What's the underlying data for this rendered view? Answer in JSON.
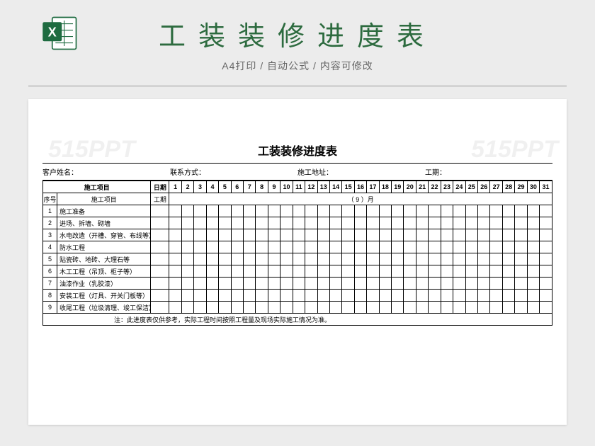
{
  "header": {
    "main_title": "工装装修进度表",
    "subtitle": "A4打印  /  自动公式  /  内容可修改"
  },
  "watermark": "515PPT",
  "sheet": {
    "title": "工装装修进度表",
    "info": {
      "customer_label": "客户姓名：",
      "contact_label": "联系方式：",
      "address_label": "施工地址：",
      "duration_label": "工期："
    },
    "table_headers": {
      "project_group": "施工项目",
      "date_label": "日期",
      "seq": "序号",
      "item": "施工项目",
      "duration": "工期",
      "month_text": "（   9   ）月"
    },
    "days": [
      "1",
      "2",
      "3",
      "4",
      "5",
      "6",
      "7",
      "8",
      "9",
      "10",
      "11",
      "12",
      "13",
      "14",
      "15",
      "16",
      "17",
      "18",
      "19",
      "20",
      "21",
      "22",
      "23",
      "24",
      "25",
      "26",
      "27",
      "28",
      "29",
      "30",
      "31"
    ],
    "rows": [
      {
        "seq": "1",
        "item": "施工准备"
      },
      {
        "seq": "2",
        "item": "进场、拆墙、砌墙"
      },
      {
        "seq": "3",
        "item": "水电改造（开槽、穿管、布线等）"
      },
      {
        "seq": "4",
        "item": "防水工程"
      },
      {
        "seq": "5",
        "item": "贴瓷砖、地砖、大理石等"
      },
      {
        "seq": "6",
        "item": "木工工程（吊顶、柜子等）"
      },
      {
        "seq": "7",
        "item": "油漆作业（乳胶漆）"
      },
      {
        "seq": "8",
        "item": "安装工程（灯具、开关门板等）"
      },
      {
        "seq": "9",
        "item": "收尾工程（垃圾清理、竣工保洁）"
      }
    ],
    "note": "注：此进度表仅供参考，实际工程时间按照工程量及现场实际施工情况为准。"
  },
  "colors": {
    "page_bg": "#ececec",
    "title_color": "#2d6b3f",
    "excel_green": "#1e6b40",
    "border": "#000000"
  }
}
